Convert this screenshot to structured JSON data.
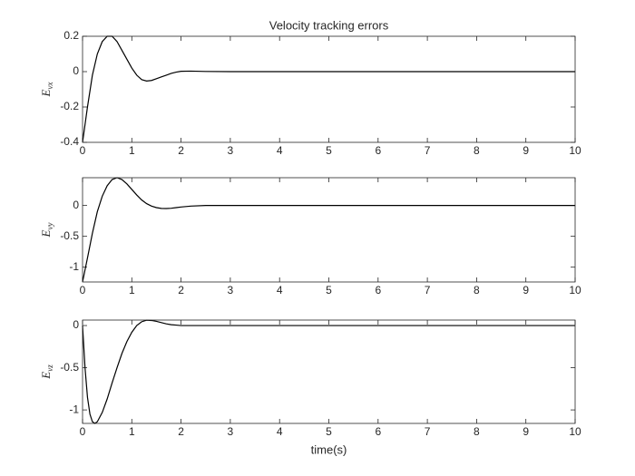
{
  "chart_data": [
    {
      "type": "line",
      "title": "Velocity tracking errors",
      "ylabel": "E",
      "ylabel_subscript": "vx",
      "color": "#000000",
      "x": [
        0,
        0.1,
        0.2,
        0.3,
        0.4,
        0.5,
        0.6,
        0.7,
        0.8,
        0.9,
        1.0,
        1.1,
        1.2,
        1.3,
        1.4,
        1.5,
        1.6,
        1.7,
        1.8,
        1.9,
        2.0,
        2.2,
        2.5,
        3,
        10
      ],
      "values": [
        -0.4,
        -0.2,
        -0.02,
        0.1,
        0.17,
        0.2,
        0.2,
        0.17,
        0.12,
        0.07,
        0.02,
        -0.02,
        -0.045,
        -0.053,
        -0.05,
        -0.04,
        -0.03,
        -0.02,
        -0.01,
        -0.003,
        0.002,
        0.003,
        0.001,
        0,
        0
      ],
      "xlim": [
        0,
        10
      ],
      "xticks": [
        0,
        1,
        2,
        3,
        4,
        5,
        6,
        7,
        8,
        9,
        10
      ],
      "ylim": [
        -0.4,
        0.2
      ],
      "yticks": [
        -0.4,
        -0.2,
        0,
        0.2
      ]
    },
    {
      "type": "line",
      "ylabel": "E",
      "ylabel_subscript": "vy",
      "color": "#000000",
      "x": [
        0,
        0.1,
        0.2,
        0.3,
        0.4,
        0.5,
        0.6,
        0.7,
        0.8,
        0.9,
        1.0,
        1.1,
        1.2,
        1.3,
        1.4,
        1.5,
        1.6,
        1.7,
        1.8,
        1.9,
        2.0,
        2.2,
        2.5,
        3,
        10
      ],
      "values": [
        -1.24,
        -0.85,
        -0.45,
        -0.1,
        0.15,
        0.32,
        0.42,
        0.45,
        0.42,
        0.35,
        0.26,
        0.17,
        0.09,
        0.03,
        -0.01,
        -0.035,
        -0.048,
        -0.05,
        -0.045,
        -0.035,
        -0.025,
        -0.01,
        0,
        0,
        0
      ],
      "xlim": [
        0,
        10
      ],
      "xticks": [
        0,
        1,
        2,
        3,
        4,
        5,
        6,
        7,
        8,
        9,
        10
      ],
      "ylim": [
        -1.24,
        0.45
      ],
      "yticks": [
        -1,
        -0.5,
        0
      ]
    },
    {
      "type": "line",
      "ylabel": "E",
      "ylabel_subscript": "vz",
      "xlabel": "time(s)",
      "color": "#000000",
      "x": [
        0,
        0.05,
        0.1,
        0.15,
        0.2,
        0.25,
        0.3,
        0.4,
        0.5,
        0.6,
        0.7,
        0.8,
        0.9,
        1.0,
        1.1,
        1.2,
        1.3,
        1.4,
        1.5,
        1.6,
        1.7,
        1.8,
        1.9,
        2.0,
        10
      ],
      "values": [
        0,
        -0.5,
        -0.85,
        -1.05,
        -1.14,
        -1.16,
        -1.14,
        -1.03,
        -0.87,
        -0.68,
        -0.5,
        -0.33,
        -0.19,
        -0.08,
        0,
        0.045,
        0.063,
        0.06,
        0.05,
        0.035,
        0.02,
        0.01,
        0.005,
        0,
        0
      ],
      "xlim": [
        0,
        10
      ],
      "xticks": [
        0,
        1,
        2,
        3,
        4,
        5,
        6,
        7,
        8,
        9,
        10
      ],
      "ylim": [
        -1.16,
        0.065
      ],
      "yticks": [
        -1,
        -0.5,
        0
      ]
    }
  ]
}
